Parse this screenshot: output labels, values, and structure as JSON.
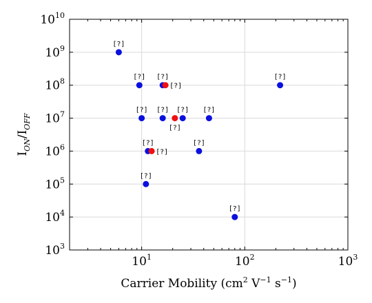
{
  "chart_data": {
    "type": "scatter",
    "title": "",
    "xscale": "log",
    "yscale": "log",
    "xlim": [
      2,
      1000
    ],
    "ylim": [
      1000,
      10000000000
    ],
    "grid": true,
    "legend": "none",
    "x_ticks": [
      {
        "base": "10",
        "exp": "1",
        "value": 10
      },
      {
        "base": "10",
        "exp": "2",
        "value": 100
      },
      {
        "base": "10",
        "exp": "3",
        "value": 1000
      }
    ],
    "y_ticks": [
      {
        "base": "10",
        "exp": "3",
        "value": 1000
      },
      {
        "base": "10",
        "exp": "4",
        "value": 10000
      },
      {
        "base": "10",
        "exp": "5",
        "value": 100000
      },
      {
        "base": "10",
        "exp": "6",
        "value": 1000000
      },
      {
        "base": "10",
        "exp": "7",
        "value": 10000000
      },
      {
        "base": "10",
        "exp": "8",
        "value": 100000000
      },
      {
        "base": "10",
        "exp": "9",
        "value": 1000000000
      },
      {
        "base": "10",
        "exp": "10",
        "value": 10000000000
      }
    ],
    "xlabel": {
      "text": "Carrier Mobility (cm",
      "sup1": "2",
      "mid": " V",
      "sup2": "−1",
      "mid2": " s",
      "sup3": "−1",
      "end": ")"
    },
    "ylabel": {
      "main": "I",
      "sub1": "ON",
      "sep": "/I",
      "sub2": "OFF"
    },
    "series": [
      {
        "color": "#0a10dd",
        "points": [
          {
            "x": 6,
            "y": 1000000000,
            "label": "[?]"
          },
          {
            "x": 9.5,
            "y": 100000000,
            "label": "[?]"
          },
          {
            "x": 16,
            "y": 100000000,
            "label": "[?]"
          },
          {
            "x": 220,
            "y": 100000000,
            "label": "[?]"
          },
          {
            "x": 10,
            "y": 10000000,
            "label": "[?]"
          },
          {
            "x": 16,
            "y": 10000000,
            "label": "[?]"
          },
          {
            "x": 25,
            "y": 10000000,
            "label": "[?]"
          },
          {
            "x": 45,
            "y": 10000000,
            "label": "[?]"
          },
          {
            "x": 11.5,
            "y": 1000000,
            "label": "[?]"
          },
          {
            "x": 36,
            "y": 1000000,
            "label": "[?]"
          },
          {
            "x": 11,
            "y": 100000,
            "label": "[?]"
          },
          {
            "x": 80,
            "y": 10000,
            "label": "[?]"
          }
        ]
      },
      {
        "color": "#ee1111",
        "points": [
          {
            "x": 17,
            "y": 100000000,
            "label": "[?]"
          },
          {
            "x": 21,
            "y": 10000000,
            "label": "[?]"
          },
          {
            "x": 12.5,
            "y": 1000000,
            "label": "[?]"
          }
        ]
      }
    ]
  }
}
